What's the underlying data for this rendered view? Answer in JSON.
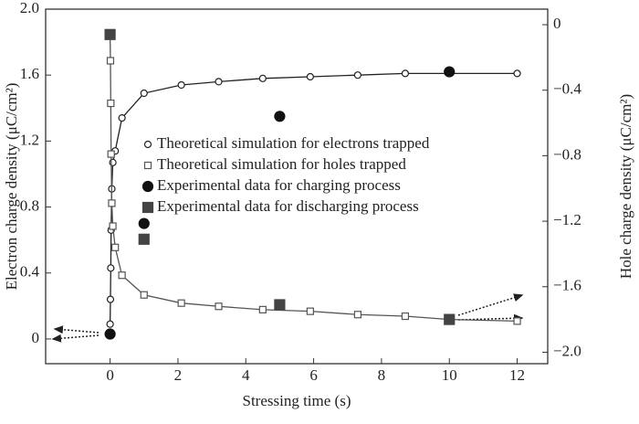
{
  "chart_data": {
    "type": "line",
    "xlabel": "Stressing time (s)",
    "ylabel": "Electron charge density (μC/cm²)",
    "y2label": "Hole charge density (μC/cm²)",
    "xlim": [
      -1.9,
      12.9
    ],
    "xticks": [
      0,
      2,
      4,
      6,
      8,
      10,
      12
    ],
    "ylim": [
      -0.15,
      2.0
    ],
    "yticks": [
      0,
      0.4,
      0.8,
      1.2,
      1.6,
      {
        "value": 2.0,
        "label": "2.0"
      }
    ],
    "y2lim": [
      -2.07,
      0.095
    ],
    "y2ticks": [
      0,
      {
        "value": -0.4,
        "label": "−0.4"
      },
      {
        "value": -0.8,
        "label": "−0.8"
      },
      {
        "value": -1.2,
        "label": "−1.2"
      },
      {
        "value": -1.6,
        "label": "−1.6"
      },
      {
        "value": -2.0,
        "label": "−2.0"
      }
    ],
    "series": [
      {
        "name": "Theoretical simulation for electrons trapped",
        "color": "#222",
        "marker": "open-circle",
        "line": true,
        "x": [
          0,
          0.01,
          0.02,
          0.03,
          0.05,
          0.08,
          0.15,
          0.35,
          1,
          2.1,
          3.2,
          4.5,
          5.9,
          7.3,
          8.7,
          10,
          12
        ],
        "values": [
          0.09,
          0.24,
          0.43,
          0.66,
          0.91,
          1.07,
          1.14,
          1.34,
          1.49,
          1.54,
          1.56,
          1.58,
          1.59,
          1.6,
          1.61,
          1.61,
          1.61
        ]
      },
      {
        "name": "Theoretical simulation for holes trapped",
        "color": "#555",
        "marker": "open-square",
        "line": true,
        "axis": "y2",
        "x": [
          0,
          0.01,
          0.02,
          0.03,
          0.05,
          0.08,
          0.15,
          0.35,
          1,
          2.1,
          3.2,
          4.5,
          5.9,
          7.3,
          8.7,
          10,
          12
        ],
        "values": [
          -0.06,
          -0.22,
          -0.48,
          -0.79,
          -1.09,
          -1.23,
          -1.36,
          -1.53,
          -1.65,
          -1.7,
          -1.72,
          -1.74,
          -1.75,
          -1.77,
          -1.78,
          -1.8,
          -1.81
        ]
      },
      {
        "name": "Experimental data for charging process",
        "color": "#111",
        "marker": "filled-circle",
        "line": false,
        "x": [
          0,
          1,
          5,
          10
        ],
        "values": [
          0.03,
          0.7,
          1.35,
          1.62
        ]
      },
      {
        "name": "Experimental data for discharging process",
        "color": "#444",
        "marker": "filled-square",
        "line": false,
        "axis": "y2",
        "x": [
          0,
          1,
          5,
          10
        ],
        "values": [
          -0.06,
          -1.31,
          -1.71,
          -1.8
        ]
      }
    ]
  }
}
